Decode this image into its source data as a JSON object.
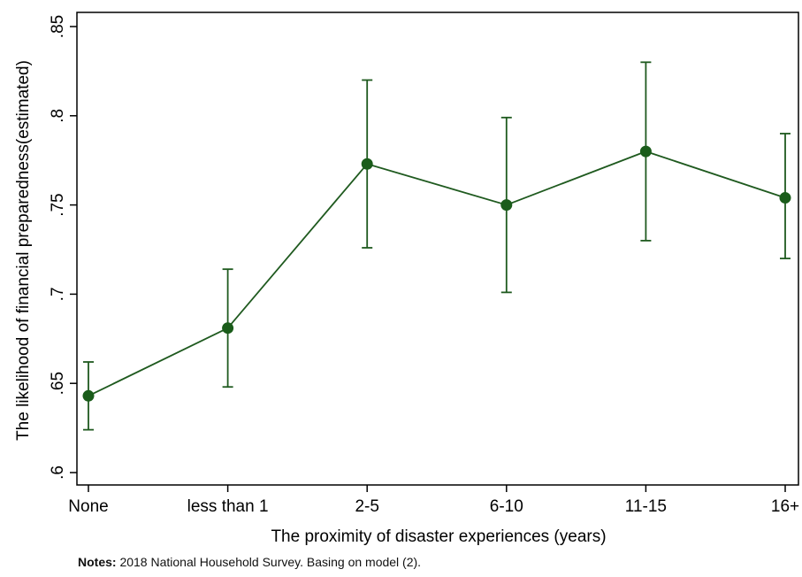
{
  "chart_data": {
    "type": "line",
    "categories": [
      "None",
      "less than 1",
      "2-5",
      "6-10",
      "11-15",
      "16+"
    ],
    "series": [
      {
        "values": [
          0.643,
          0.681,
          0.773,
          0.75,
          0.78,
          0.754
        ],
        "ci_low": [
          0.624,
          0.648,
          0.726,
          0.701,
          0.73,
          0.72
        ],
        "ci_high": [
          0.662,
          0.714,
          0.82,
          0.799,
          0.83,
          0.79
        ]
      }
    ],
    "ylim": [
      0.6,
      0.85
    ],
    "yticks": [
      0.6,
      0.65,
      0.7,
      0.75,
      0.8,
      0.85
    ],
    "ytick_labels": [
      ".6",
      ".65",
      ".7",
      ".75",
      ".8",
      ".85"
    ],
    "xlabel": "The proximity of disaster experiences (years)",
    "ylabel": "The likelihood of financial preparedness(estimated)",
    "grid": false,
    "color": "#1f5a1f",
    "marker_color": "#1a5c1a"
  },
  "notes": {
    "label": "Notes:",
    "text": " 2018 National Household Survey. Basing on model (2)."
  }
}
